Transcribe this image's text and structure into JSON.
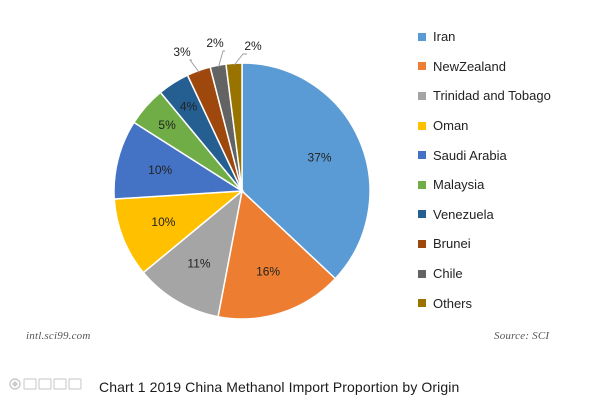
{
  "chart_data": {
    "type": "pie",
    "title": "Chart 1 2019 China Methanol Import Proportion by Origin",
    "categories": [
      "Iran",
      "NewZealand",
      "Trinidad and Tobago",
      "Oman",
      "Saudi Arabia",
      "Malaysia",
      "Venezuela",
      "Brunei",
      "Chile",
      "Others"
    ],
    "values": [
      37,
      16,
      11,
      10,
      10,
      5,
      4,
      3,
      2,
      2
    ],
    "value_labels": [
      "37%",
      "16%",
      "11%",
      "10%",
      "10%",
      "5%",
      "4%",
      "3%",
      "2%",
      "2%"
    ],
    "colors": [
      "#5b9bd5",
      "#ed7d31",
      "#a5a5a5",
      "#ffc000",
      "#4472c4",
      "#70ad47",
      "#255e91",
      "#9e480e",
      "#636363",
      "#997300"
    ],
    "legend_position": "right",
    "start_angle_deg": 0,
    "direction": "clockwise"
  },
  "watermarks": {
    "left": "intl.sci99.com",
    "right": "Source: SCI"
  },
  "caption": "Chart 1 2019 China Methanol Import Proportion by Origin"
}
